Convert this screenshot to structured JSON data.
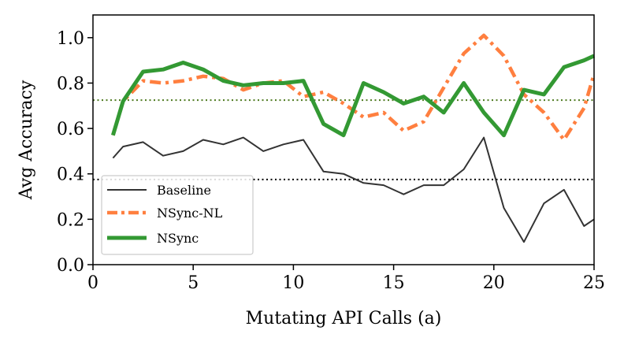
{
  "chart_data": {
    "type": "line",
    "title": "",
    "xlabel": "Mutating API Calls (a)",
    "ylabel": "Avg Accuracy",
    "xlim": [
      0,
      25
    ],
    "ylim": [
      0.0,
      1.1
    ],
    "xticks": [
      0,
      5,
      10,
      15,
      20,
      25
    ],
    "xtick_labels": [
      "0",
      "5",
      "10",
      "15",
      "20",
      "25"
    ],
    "yticks": [
      0.0,
      0.2,
      0.4,
      0.6,
      0.8,
      1.0
    ],
    "ytick_labels": [
      "0.0",
      "0.2",
      "0.4",
      "0.6",
      "0.8",
      "1.0"
    ],
    "grid": false,
    "legend_position": "lower-left",
    "x": [
      1,
      1.5,
      2.5,
      3.5,
      4.5,
      5.5,
      6.5,
      7.5,
      8.5,
      9.5,
      10.5,
      11.5,
      12.5,
      13.5,
      14.5,
      15.5,
      16.5,
      17.5,
      18.5,
      19.5,
      20.5,
      21.5,
      22.5,
      23.5,
      24.5,
      25
    ],
    "series": [
      {
        "name": "Baseline",
        "color": "#333333",
        "style": "solid",
        "values": [
          0.47,
          0.52,
          0.54,
          0.48,
          0.5,
          0.55,
          0.53,
          0.56,
          0.5,
          0.53,
          0.55,
          0.41,
          0.4,
          0.36,
          0.35,
          0.31,
          0.35,
          0.35,
          0.42,
          0.56,
          0.25,
          0.1,
          0.27,
          0.33,
          0.17,
          0.2
        ]
      },
      {
        "name": "NSync-NL",
        "color": "#ff7f3f",
        "style": "dashdot",
        "values": [
          0.57,
          0.72,
          0.81,
          0.8,
          0.81,
          0.83,
          0.82,
          0.77,
          0.8,
          0.81,
          0.74,
          0.76,
          0.71,
          0.65,
          0.67,
          0.59,
          0.63,
          0.78,
          0.93,
          1.01,
          0.92,
          0.75,
          0.67,
          0.55,
          0.69,
          0.84
        ]
      },
      {
        "name": "NSync",
        "color": "#339933",
        "style": "solid-thick",
        "values": [
          0.57,
          0.72,
          0.85,
          0.86,
          0.89,
          0.86,
          0.81,
          0.79,
          0.8,
          0.8,
          0.81,
          0.62,
          0.57,
          0.8,
          0.76,
          0.71,
          0.74,
          0.67,
          0.8,
          0.67,
          0.57,
          0.77,
          0.75,
          0.87,
          0.9,
          0.92
        ]
      }
    ],
    "reference_lines": [
      {
        "name": "nsync-mean",
        "y": 0.725,
        "color": "#4d7a1f",
        "style": "dotted"
      },
      {
        "name": "baseline-mean",
        "y": 0.375,
        "color": "#000000",
        "style": "dotted"
      }
    ]
  }
}
